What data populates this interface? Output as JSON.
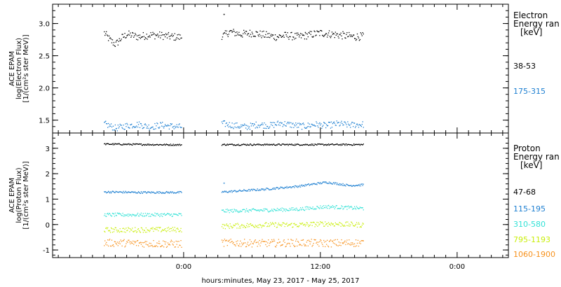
{
  "chart_data": [
    {
      "type": "scatter",
      "panel": "electron",
      "ylabel": [
        "ACE EPAM",
        "log(Electron Flux)",
        "[1/(cm²s ster MeV)]"
      ],
      "ylim": [
        1.3,
        3.3
      ],
      "yticks": [
        1.5,
        2.0,
        2.5,
        3.0
      ],
      "yticklabels": [
        "1.5",
        "2.0",
        "2.5",
        "3.0"
      ],
      "legend_title": [
        "Electron",
        "Energy ran",
        "[keV]"
      ],
      "series": [
        {
          "name": "38-53",
          "color": "#000000",
          "mean": 2.8,
          "spread": 0.06,
          "x": [
            [
              -7.0,
              2.86
            ],
            [
              -6.5,
              2.75
            ],
            [
              -6.0,
              2.68
            ],
            [
              -5.5,
              2.78
            ],
            [
              -5.0,
              2.84
            ],
            [
              -4.0,
              2.8
            ],
            [
              -3.0,
              2.83
            ],
            [
              -2.0,
              2.82
            ],
            [
              -1.0,
              2.8
            ],
            [
              -0.2,
              2.79
            ],
            [
              3.5,
              2.82
            ],
            [
              4.0,
              2.88
            ],
            [
              5.0,
              2.84
            ],
            [
              6.0,
              2.86
            ],
            [
              7.0,
              2.83
            ],
            [
              8.0,
              2.8
            ],
            [
              9.0,
              2.82
            ],
            [
              10.0,
              2.8
            ],
            [
              11.0,
              2.83
            ],
            [
              12.0,
              2.86
            ],
            [
              13.0,
              2.84
            ],
            [
              14.0,
              2.82
            ],
            [
              15.0,
              2.8
            ],
            [
              15.8,
              2.81
            ]
          ],
          "outlier": [
            3.5,
            3.15
          ]
        },
        {
          "name": "175-315",
          "color": "#1d7fd1",
          "mean": 1.42,
          "spread": 0.05,
          "x": [
            [
              -7.0,
              1.45
            ],
            [
              -6.0,
              1.38
            ],
            [
              -5.0,
              1.42
            ],
            [
              -4.0,
              1.44
            ],
            [
              -3.0,
              1.4
            ],
            [
              -2.0,
              1.43
            ],
            [
              -1.0,
              1.41
            ],
            [
              -0.2,
              1.4
            ],
            [
              3.5,
              1.45
            ],
            [
              4.5,
              1.42
            ],
            [
              5.5,
              1.4
            ],
            [
              6.5,
              1.44
            ],
            [
              7.5,
              1.42
            ],
            [
              8.5,
              1.46
            ],
            [
              9.5,
              1.43
            ],
            [
              10.5,
              1.41
            ],
            [
              11.5,
              1.44
            ],
            [
              12.5,
              1.42
            ],
            [
              13.5,
              1.45
            ],
            [
              14.5,
              1.43
            ],
            [
              15.8,
              1.44
            ]
          ]
        }
      ]
    },
    {
      "type": "scatter",
      "panel": "proton",
      "ylabel": [
        "ACE EPAM",
        "log(Proton Flux)",
        "[1/(cm²s ster MeV)]"
      ],
      "ylim": [
        -1.3,
        3.6
      ],
      "yticks": [
        -1,
        0,
        1,
        2,
        3
      ],
      "yticklabels": [
        "-1",
        "0",
        "1",
        "2",
        "3"
      ],
      "legend_title": [
        "Proton",
        "Energy ran",
        "[keV]"
      ],
      "series": [
        {
          "name": "47-68",
          "color": "#000000",
          "spread": 0.03,
          "x": [
            [
              -7.0,
              3.18
            ],
            [
              -0.2,
              3.15
            ],
            [
              3.5,
              3.16
            ],
            [
              15.8,
              3.16
            ]
          ]
        },
        {
          "name": "115-195",
          "color": "#1d7fd1",
          "spread": 0.04,
          "x": [
            [
              -7.0,
              1.3
            ],
            [
              -4.0,
              1.28
            ],
            [
              -0.2,
              1.28
            ],
            [
              3.5,
              1.3
            ],
            [
              7.0,
              1.4
            ],
            [
              10.0,
              1.52
            ],
            [
              12.5,
              1.68
            ],
            [
              13.5,
              1.62
            ],
            [
              14.5,
              1.55
            ],
            [
              15.8,
              1.58
            ]
          ],
          "outlier": [
            3.5,
            1.65
          ]
        },
        {
          "name": "310-580",
          "color": "#32e2d6",
          "spread": 0.07,
          "x": [
            [
              -7.0,
              0.4
            ],
            [
              -0.2,
              0.4
            ],
            [
              3.5,
              0.55
            ],
            [
              7.0,
              0.58
            ],
            [
              10.0,
              0.62
            ],
            [
              12.5,
              0.72
            ],
            [
              15.8,
              0.65
            ]
          ]
        },
        {
          "name": "795-1193",
          "color": "#c9ee0a",
          "spread": 0.1,
          "x": [
            [
              -7.0,
              -0.2
            ],
            [
              -0.2,
              -0.18
            ],
            [
              3.5,
              -0.05
            ],
            [
              7.0,
              0.0
            ],
            [
              10.0,
              0.0
            ],
            [
              12.5,
              0.05
            ],
            [
              15.8,
              0.0
            ]
          ]
        },
        {
          "name": "1060-1900",
          "color": "#f7911c",
          "spread": 0.15,
          "x": [
            [
              -7.0,
              -0.7
            ],
            [
              -0.2,
              -0.75
            ],
            [
              3.5,
              -0.7
            ],
            [
              7.0,
              -0.72
            ],
            [
              10.0,
              -0.7
            ],
            [
              12.5,
              -0.72
            ],
            [
              15.8,
              -0.7
            ]
          ]
        }
      ]
    }
  ],
  "x_axis": {
    "label": "hours:minutes, May 23, 2017 - May 25, 2017",
    "range_hours": [
      -11.5,
      28.5
    ],
    "tick_labels": [
      "0:00",
      "12:00",
      "0:00"
    ],
    "tick_hours": [
      0,
      12,
      24
    ],
    "minor_tick_step_hours": 1,
    "data_gap_hours": [
      0,
      3.3
    ]
  },
  "legend": {
    "electron": {
      "title_lines": [
        "Electron",
        "Energy ran",
        "[keV]"
      ],
      "entries": [
        {
          "label": "38-53",
          "color": "#000000"
        },
        {
          "label": "175-315",
          "color": "#1d7fd1"
        }
      ]
    },
    "proton": {
      "title_lines": [
        "Proton",
        "Energy ran",
        "[keV]"
      ],
      "entries": [
        {
          "label": "47-68",
          "color": "#000000"
        },
        {
          "label": "115-195",
          "color": "#1d7fd1"
        },
        {
          "label": "310-580",
          "color": "#32e2d6"
        },
        {
          "label": "795-1193",
          "color": "#c9ee0a"
        },
        {
          "label": "1060-1900",
          "color": "#f7911c"
        }
      ]
    }
  }
}
